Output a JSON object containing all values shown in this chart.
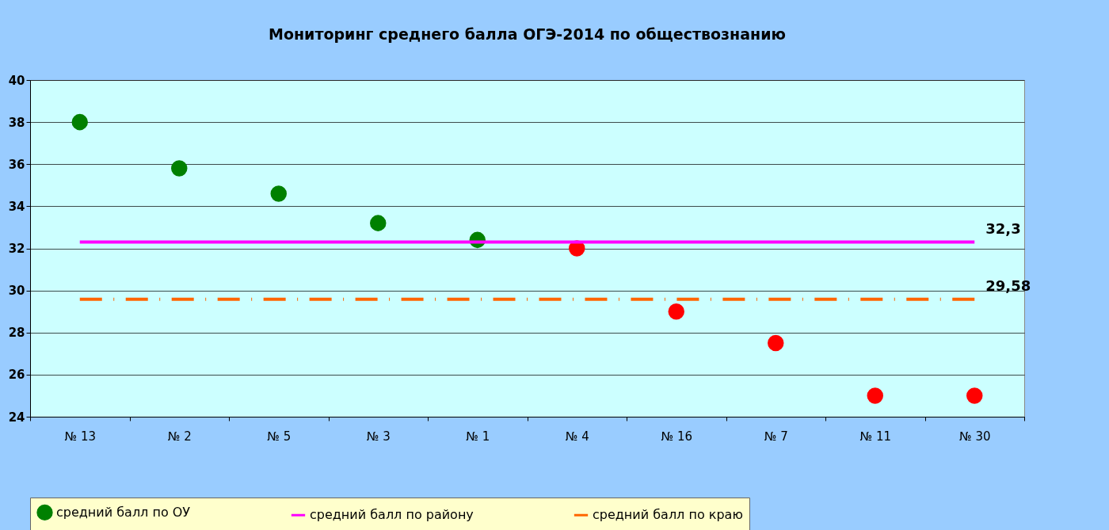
{
  "chart_data": {
    "type": "scatter",
    "title": "Мониторинг среднего балла ОГЭ-2014 по обществознанию",
    "categories": [
      "№ 13",
      "№ 2",
      "№ 5",
      "№ 3",
      "№ 1",
      "№ 4",
      "№ 16",
      "№ 7",
      "№ 11",
      "№ 30"
    ],
    "series": [
      {
        "name": "средний балл по ОУ",
        "marker": "circle",
        "color": "#008000",
        "colors": [
          "#008000",
          "#008000",
          "#008000",
          "#008000",
          "#008000",
          "#ff0000",
          "#ff0000",
          "#ff0000",
          "#ff0000",
          "#ff0000"
        ],
        "values": [
          38.0,
          35.8,
          34.6,
          33.2,
          32.4,
          32.0,
          29.0,
          27.5,
          25.0,
          25.0
        ]
      },
      {
        "name": "средний балл по району",
        "type": "line",
        "line_style": "solid",
        "color": "#ff00ff",
        "values": [
          32.3,
          32.3,
          32.3,
          32.3,
          32.3,
          32.3,
          32.3,
          32.3,
          32.3,
          32.3
        ],
        "value_labels": [
          null,
          null,
          null,
          null,
          null,
          null,
          null,
          null,
          null,
          "32,3"
        ]
      },
      {
        "name": "средний балл по краю",
        "type": "line",
        "line_style": "dashed",
        "color": "#ff6600",
        "values": [
          29.58,
          29.58,
          29.58,
          29.58,
          29.58,
          29.58,
          29.58,
          29.58,
          29.58,
          29.58
        ],
        "value_labels": [
          null,
          null,
          null,
          null,
          null,
          null,
          null,
          null,
          null,
          "29,58"
        ]
      }
    ],
    "ylim": [
      24,
      40
    ],
    "yticks": [
      24,
      26,
      28,
      30,
      32,
      34,
      36,
      38,
      40
    ],
    "grid": "y",
    "legend": "bottom"
  }
}
